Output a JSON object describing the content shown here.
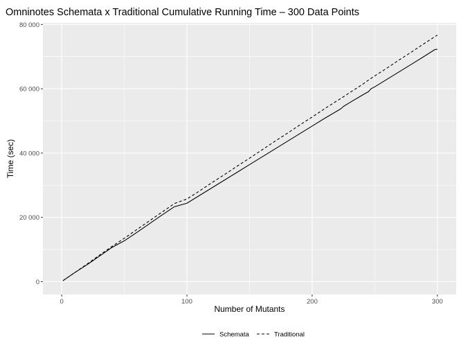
{
  "chart_data": {
    "type": "line",
    "title": "Omninotes Schemata x Traditional Cumulative Running Time – 300 Data Points",
    "xlabel": "Number of Mutants",
    "ylabel": "Time (sec)",
    "xlim": [
      -15,
      315
    ],
    "ylim": [
      -4000,
      80500
    ],
    "x_ticks": [
      0,
      100,
      200,
      300
    ],
    "x_tick_labels": [
      "0",
      "100",
      "200",
      "300"
    ],
    "y_ticks": [
      0,
      20000,
      40000,
      60000,
      80000
    ],
    "y_tick_labels": [
      "0",
      "20 000",
      "40 000",
      "60 000",
      "80 000"
    ],
    "grid": true,
    "legend_position": "bottom",
    "series": [
      {
        "name": "Schemata",
        "line_style": "solid",
        "color": "#000000",
        "x": [
          1,
          10,
          20,
          30,
          40,
          50,
          60,
          70,
          80,
          90,
          100,
          110,
          120,
          130,
          140,
          150,
          160,
          170,
          180,
          190,
          200,
          210,
          220,
          223,
          225,
          230,
          240,
          245,
          247,
          250,
          260,
          270,
          280,
          290,
          298,
          300
        ],
        "y": [
          300,
          2700,
          5200,
          7900,
          10600,
          12700,
          15300,
          18000,
          20700,
          23300,
          24400,
          26800,
          29200,
          31600,
          34000,
          36400,
          38800,
          41200,
          43600,
          46000,
          48400,
          50800,
          53100,
          53800,
          54500,
          55700,
          58000,
          59100,
          60000,
          60600,
          63000,
          65400,
          67800,
          70200,
          72200,
          72300
        ]
      },
      {
        "name": "Traditional",
        "line_style": "dashed",
        "color": "#000000",
        "x": [
          1,
          10,
          20,
          30,
          40,
          50,
          60,
          70,
          80,
          90,
          100,
          110,
          120,
          130,
          140,
          150,
          160,
          170,
          180,
          190,
          200,
          210,
          220,
          223,
          230,
          240,
          245,
          250,
          260,
          270,
          280,
          290,
          300
        ],
        "y": [
          300,
          2700,
          5400,
          8200,
          10900,
          13500,
          16200,
          18900,
          21600,
          24300,
          25700,
          28200,
          30800,
          33300,
          35900,
          38400,
          41000,
          43600,
          46100,
          48700,
          51200,
          53800,
          56300,
          57000,
          58800,
          61300,
          62700,
          64000,
          66500,
          69100,
          71600,
          74200,
          76700
        ]
      }
    ]
  }
}
